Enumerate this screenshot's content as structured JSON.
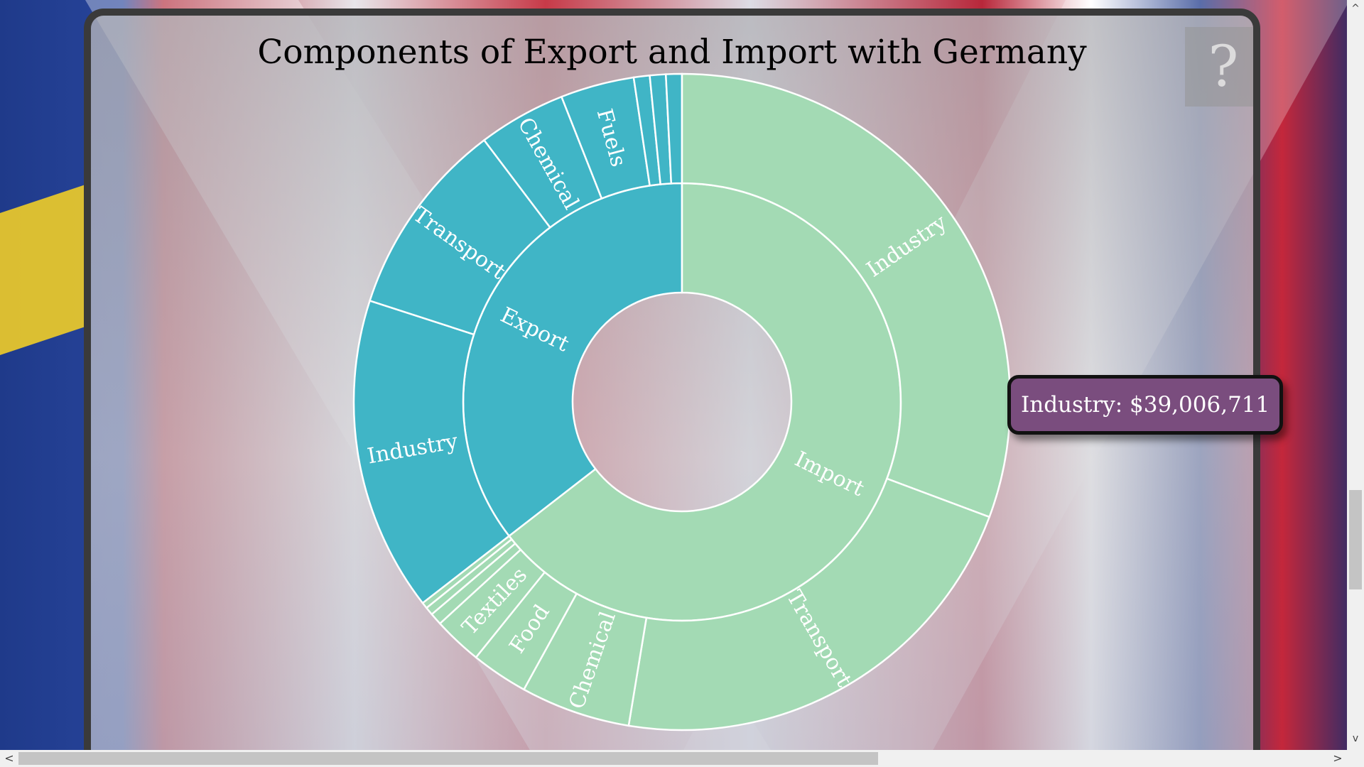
{
  "help": {
    "label": "?"
  },
  "tooltip": {
    "text": "Industry: $39,006,711"
  },
  "colors": {
    "export": "#40b5c6",
    "import": "#a3dab4",
    "tooltip_bg": "#7a4d7e"
  },
  "chart_data": {
    "type": "sunburst",
    "title": "Components of Export and Import with Germany",
    "groups": [
      {
        "name": "Export",
        "value": 35.5,
        "children": [
          {
            "name": "Industry",
            "value": 15.8
          },
          {
            "name": "Transport",
            "value": 9.9
          },
          {
            "name": "Chemical",
            "value": 4.4
          },
          {
            "name": "Fuels",
            "value": 3.7
          },
          {
            "name": "",
            "value": 0.8
          },
          {
            "name": "",
            "value": 0.8
          },
          {
            "name": "",
            "value": 0.8
          }
        ]
      },
      {
        "name": "Import",
        "value": 64.5,
        "children": [
          {
            "name": "Industry",
            "value": 30.7
          },
          {
            "name": "Transport",
            "value": 21.9
          },
          {
            "name": "Chemical",
            "value": 5.4
          },
          {
            "name": "Food",
            "value": 2.8
          },
          {
            "name": "Textiles",
            "value": 2.4
          },
          {
            "name": "",
            "value": 0.6
          },
          {
            "name": "",
            "value": 0.4
          },
          {
            "name": "",
            "value": 0.3
          }
        ]
      }
    ]
  },
  "scrollbars": {
    "left": "<",
    "right": ">",
    "up": "^",
    "down": "v"
  }
}
